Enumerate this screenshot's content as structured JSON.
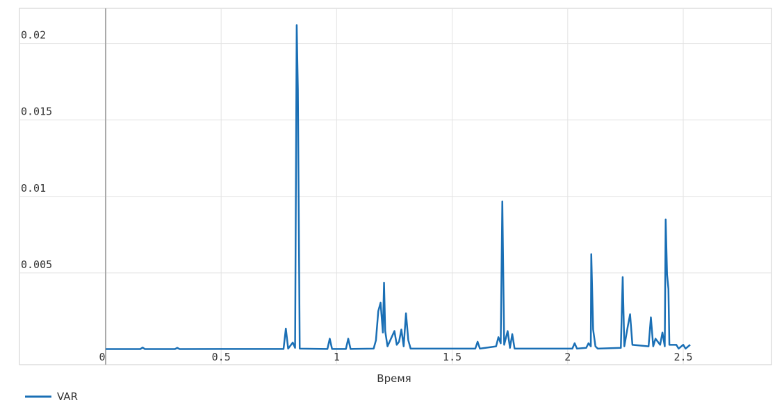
{
  "chart_data": {
    "type": "line",
    "x_label": "Время",
    "x": [
      0,
      0.15,
      0.16,
      0.17,
      0.3,
      0.31,
      0.32,
      0.5,
      0.77,
      0.78,
      0.79,
      0.81,
      0.82,
      0.827,
      0.832,
      0.84,
      0.96,
      0.97,
      0.98,
      1.04,
      1.05,
      1.06,
      1.16,
      1.17,
      1.18,
      1.19,
      1.2,
      1.205,
      1.21,
      1.22,
      1.25,
      1.26,
      1.27,
      1.28,
      1.29,
      1.3,
      1.31,
      1.32,
      1.6,
      1.61,
      1.62,
      1.69,
      1.7,
      1.71,
      1.717,
      1.725,
      1.74,
      1.75,
      1.76,
      1.77,
      2.02,
      2.03,
      2.04,
      2.08,
      2.09,
      2.1,
      2.102,
      2.11,
      2.12,
      2.13,
      2.23,
      2.238,
      2.245,
      2.26,
      2.27,
      2.28,
      2.35,
      2.36,
      2.37,
      2.38,
      2.4,
      2.41,
      2.42,
      2.424,
      2.43,
      2.436,
      2.44,
      2.47,
      2.48,
      2.5,
      2.51,
      2.53
    ],
    "series": [
      {
        "name": "VAR",
        "color": "#1a6fb5",
        "values": [
          2e-05,
          2e-05,
          0.00012,
          2e-05,
          2e-05,
          0.0001,
          2e-05,
          3e-05,
          3e-05,
          0.00136,
          5e-05,
          0.00045,
          0.0001,
          0.0212,
          0.017,
          5e-05,
          3e-05,
          0.0007,
          3e-05,
          3e-05,
          0.0007,
          3e-05,
          5e-05,
          0.0006,
          0.0025,
          0.00305,
          0.0011,
          0.00436,
          0.0012,
          0.0002,
          0.0012,
          0.0003,
          0.0005,
          0.0013,
          0.0002,
          0.00236,
          0.0006,
          5e-05,
          5e-05,
          0.0005,
          5e-05,
          0.0002,
          0.0008,
          0.0004,
          0.00968,
          0.0003,
          0.0012,
          0.0001,
          0.001,
          5e-05,
          5e-05,
          0.0004,
          5e-05,
          0.0001,
          0.0004,
          0.0002,
          0.00623,
          0.0013,
          0.0002,
          5e-05,
          0.0001,
          0.00473,
          0.0002,
          0.0015,
          0.0023,
          0.0003,
          0.0002,
          0.0021,
          0.0002,
          0.0007,
          0.0003,
          0.0011,
          0.0002,
          0.0085,
          0.0049,
          0.00395,
          0.0003,
          0.0003,
          5e-05,
          0.0003,
          5e-05,
          0.0003
        ]
      }
    ],
    "xlim": [
      -0.373,
      2.882
    ],
    "ylim": [
      -0.001,
      0.0223
    ],
    "xticks": [
      0,
      0.5,
      1,
      1.5,
      2,
      2.5
    ],
    "yticks": [
      0.005,
      0.01,
      0.015,
      0.02
    ],
    "grid": true
  }
}
